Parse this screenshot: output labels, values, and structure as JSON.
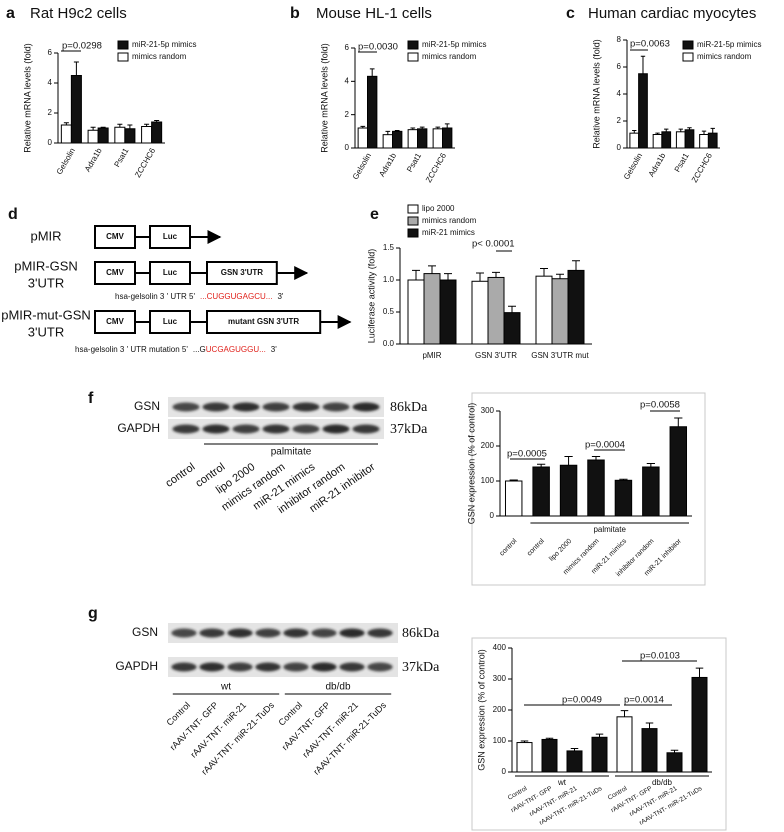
{
  "chart_data": [
    {
      "type": "bar",
      "label": "a",
      "title": "Rat H9c2 cells",
      "y_label": "Relative mRNA levels (fold)",
      "categories": [
        "Gelsolin",
        "Adra1b",
        "Psat1",
        "ZCCHC6"
      ],
      "series": [
        {
          "name": "mimics random",
          "color": "#ffffff",
          "values": [
            1.2,
            0.85,
            1.05,
            1.1
          ],
          "errors": [
            0.15,
            0.2,
            0.2,
            0.15
          ]
        },
        {
          "name": "miR-21-5p mimics",
          "color": "#111111",
          "values": [
            4.5,
            1.0,
            0.95,
            1.4
          ],
          "errors": [
            0.9,
            0.05,
            0.25,
            0.1
          ]
        }
      ],
      "ylim": [
        0,
        6
      ],
      "yticks": [
        0,
        2,
        4,
        6
      ],
      "annotations": [
        "p=0.0298"
      ]
    },
    {
      "type": "bar",
      "label": "b",
      "title": "Mouse HL-1 cells",
      "y_label": "Relative mRNA levels (fold)",
      "categories": [
        "Gelsolin",
        "Adra1b",
        "Psat1",
        "ZCCHC6"
      ],
      "series": [
        {
          "name": "mimics random",
          "color": "#ffffff",
          "values": [
            1.2,
            0.8,
            1.1,
            1.15
          ],
          "errors": [
            0.1,
            0.2,
            0.1,
            0.1
          ]
        },
        {
          "name": "miR-21-5p mimics",
          "color": "#111111",
          "values": [
            4.3,
            1.0,
            1.15,
            1.2
          ],
          "errors": [
            0.45,
            0.05,
            0.1,
            0.25
          ]
        }
      ],
      "ylim": [
        0,
        6
      ],
      "yticks": [
        0,
        2,
        4,
        6
      ],
      "annotations": [
        "p=0.0030"
      ]
    },
    {
      "type": "bar",
      "label": "c",
      "title": "Human cardiac myocytes",
      "y_label": "Relative mRNA levels (fold)",
      "categories": [
        "Gelsolin",
        "Adra1b",
        "Psat1",
        "ZCCHC6"
      ],
      "series": [
        {
          "name": "mimics random",
          "color": "#ffffff",
          "values": [
            1.1,
            1.0,
            1.2,
            1.0
          ],
          "errors": [
            0.2,
            0.1,
            0.2,
            0.25
          ]
        },
        {
          "name": "miR-21-5p mimics",
          "color": "#111111",
          "values": [
            5.5,
            1.2,
            1.35,
            1.1
          ],
          "errors": [
            1.3,
            0.2,
            0.15,
            0.35
          ]
        }
      ],
      "ylim": [
        0,
        8
      ],
      "yticks": [
        0,
        2,
        4,
        6,
        8
      ],
      "annotations": [
        "p=0.0063"
      ]
    },
    {
      "type": "bar",
      "label": "e",
      "y_label": "Luciferase activity (fold)",
      "categories": [
        "pMIR",
        "GSN 3'UTR",
        "GSN 3'UTR mut"
      ],
      "series": [
        {
          "name": "lipo 2000",
          "color": "#ffffff",
          "values": [
            1.0,
            0.98,
            1.06
          ],
          "errors": [
            0.15,
            0.13,
            0.12
          ]
        },
        {
          "name": "mimics random",
          "color": "#aaaaaa",
          "values": [
            1.1,
            1.04,
            1.02
          ],
          "errors": [
            0.12,
            0.08,
            0.07
          ]
        },
        {
          "name": "miR-21 mimics",
          "color": "#111111",
          "values": [
            1.0,
            0.49,
            1.15
          ],
          "errors": [
            0.1,
            0.1,
            0.15
          ]
        }
      ],
      "ylim": [
        0,
        1.5
      ],
      "yticks": [
        {
          "value": 0,
          "label": "0.0"
        },
        0.5,
        {
          "value": 1,
          "label": "1.0"
        },
        1.5
      ],
      "annotations": [
        "p< 0.0001"
      ]
    },
    {
      "type": "bar",
      "label": "f",
      "y_label": "GSN expression (% of control)",
      "categories": [
        "control",
        "control",
        "lipo 2000",
        "mimics random",
        "miR-21 mimics",
        "inhibitor random",
        "miR-21 inhibitor"
      ],
      "values": [
        100,
        140,
        145,
        160,
        102,
        140,
        255
      ],
      "errors": [
        3,
        8,
        25,
        10,
        3,
        10,
        25
      ],
      "colors": [
        "#ffffff",
        "#111111",
        "#111111",
        "#111111",
        "#111111",
        "#111111",
        "#111111"
      ],
      "ylim": [
        0,
        300
      ],
      "yticks": [
        0,
        100,
        200,
        300
      ],
      "group_labels": [
        "palmitate"
      ],
      "annotations": [
        "p=0.0005",
        "p=0.0004",
        "p=0.0058"
      ]
    },
    {
      "type": "bar",
      "label": "g",
      "y_label": "GSN expression (% of control)",
      "categories": [
        "Control",
        "rAAV-TNT- GFP",
        "rAAV-TNT- miR-21",
        "rAAV-TNT- miR-21-TuDs",
        "Control",
        "rAAV-TNT- GFP",
        "rAAV-TNT- miR-21",
        "rAAV-TNT- miR-21-TuDs"
      ],
      "values": [
        95,
        105,
        68,
        112,
        178,
        140,
        62,
        305
      ],
      "errors": [
        5,
        4,
        8,
        10,
        20,
        18,
        8,
        30
      ],
      "colors": [
        "#ffffff",
        "#111111",
        "#111111",
        "#111111",
        "#ffffff",
        "#111111",
        "#111111",
        "#111111"
      ],
      "ylim": [
        0,
        400
      ],
      "yticks": [
        0,
        100,
        200,
        300,
        400
      ],
      "group_labels": [
        "wt",
        "db/db"
      ],
      "annotations": [
        "p=0.0049",
        "p=0.0014",
        "p=0.0103"
      ]
    }
  ],
  "diagram": {
    "label": "d",
    "sequence_color": "#e0201a",
    "constructs": [
      {
        "name": [
          "pMIR"
        ],
        "parts": [
          "CMV",
          "Luc"
        ]
      },
      {
        "name": [
          "pMIR-GSN",
          "3'UTR"
        ],
        "parts": [
          "CMV",
          "Luc",
          "GSN 3'UTR"
        ],
        "sequence": [
          "hsa-gelsolin 3 ' UTR 5'",
          "...CUGGUGAGCU...",
          "3'"
        ]
      },
      {
        "name": [
          "pMIR-mut-GSN",
          "3'UTR"
        ],
        "parts": [
          "CMV",
          "Luc",
          "mutant GSN 3'UTR"
        ],
        "sequence": [
          "hsa-gelsolin 3 ' UTR mutation  5'",
          "...G",
          "UCGAGUGGU...",
          "3'"
        ]
      }
    ]
  },
  "blots": [
    {
      "rows": [
        "GSN",
        "GAPDH"
      ],
      "sizes": [
        "86kDa",
        "37kDa"
      ],
      "lanes": [
        "control",
        "control",
        "lipo 2000",
        "mimics random",
        "miR-21 mimics",
        "inhibitor random",
        "miR-21 inhibitor"
      ],
      "groups": [
        "palmitate"
      ]
    },
    {
      "rows": [
        "GSN",
        "GAPDH"
      ],
      "sizes": [
        "86kDa",
        "37kDa"
      ],
      "lanes": [
        "Control",
        "rAAV-TNT- GFP",
        "rAAV-TNT- miR-21",
        "rAAV-TNT- miR-21-TuDs",
        "Control",
        "rAAV-TNT- GFP",
        "rAAV-TNT- miR-21",
        "rAAV-TNT- miR-21-TuDs"
      ],
      "groups": [
        "wt",
        "db/db"
      ]
    }
  ]
}
